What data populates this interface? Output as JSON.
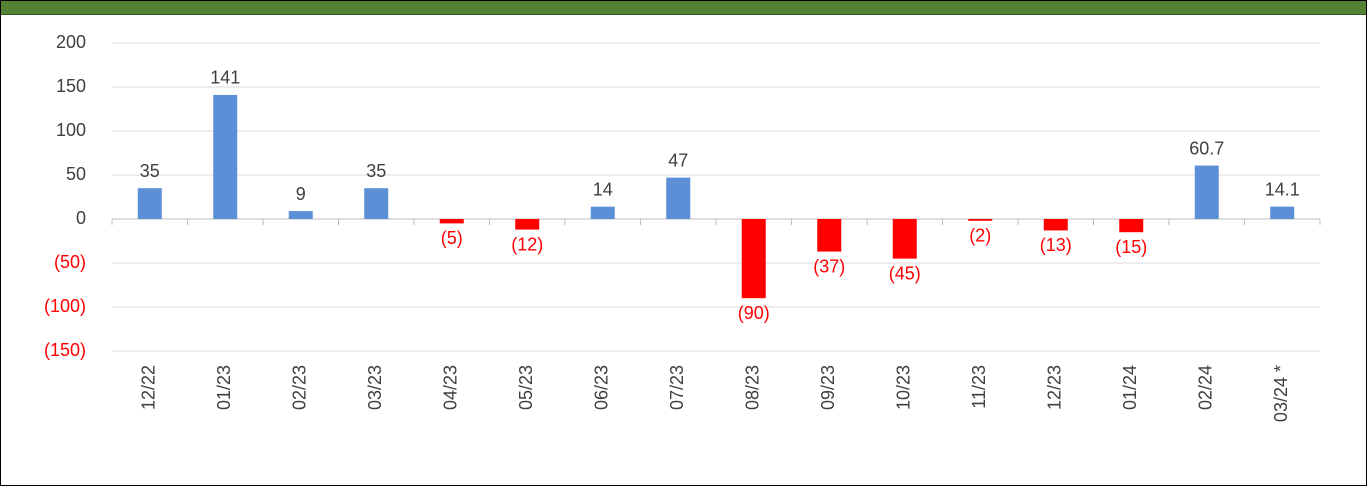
{
  "chart_data": {
    "type": "bar",
    "categories": [
      "12/22",
      "01/23",
      "02/23",
      "03/23",
      "04/23",
      "05/23",
      "06/23",
      "07/23",
      "08/23",
      "09/23",
      "10/23",
      "11/23",
      "12/23",
      "01/24",
      "02/24",
      "03/24 *"
    ],
    "values": [
      35,
      141,
      9,
      35,
      -5,
      -12,
      14,
      47,
      -90,
      -37,
      -45,
      -2,
      -13,
      -15,
      60.7,
      14.1
    ],
    "value_labels": [
      "35",
      "141",
      "9",
      "35",
      "(5)",
      "(12)",
      "14",
      "47",
      "(90)",
      "(37)",
      "(45)",
      "(2)",
      "(13)",
      "(15)",
      "60.7",
      "14.1"
    ],
    "positive_color": "#5b8fd6",
    "negative_color": "#ff0000",
    "ylim": [
      -150,
      200
    ],
    "yticks": [
      200,
      150,
      100,
      50,
      0,
      {
        "value": -50,
        "label": "(50)"
      },
      {
        "value": -100,
        "label": "(100)"
      },
      {
        "value": -150,
        "label": "(150)"
      }
    ],
    "grid": true
  }
}
